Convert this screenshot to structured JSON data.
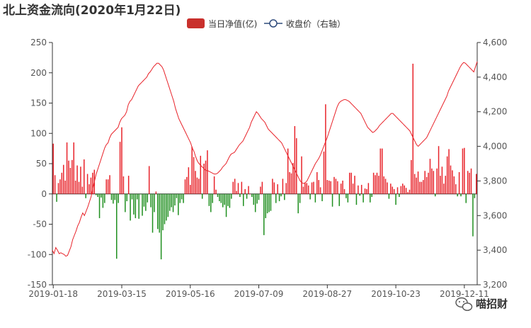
{
  "chart_data": {
    "type": "bar+line",
    "title": "北上资金流向(2020年1月22日)",
    "legend": [
      "当日净值(亿)",
      "收盘价（右轴）"
    ],
    "colors": {
      "positive": "#e8232a",
      "negative": "#1f8f1f",
      "line": "#e8232a"
    },
    "y_left": {
      "min": -150,
      "max": 250,
      "ticks": [
        "250",
        "200",
        "150",
        "100",
        "50",
        "0",
        "-50",
        "-100",
        "-150"
      ]
    },
    "y_right": {
      "min": 3200,
      "max": 4600,
      "ticks": [
        "4,600",
        "4,400",
        "4,200",
        "4,000",
        "3,800",
        "3,600",
        "3,400",
        "3,200"
      ]
    },
    "x_tick_labels": [
      "2019-01-18",
      "2019-03-15",
      "2019-05-16",
      "2019-07-09",
      "2019-08-27",
      "2019-10-23",
      "2019-12-11"
    ],
    "x_tick_index": [
      0,
      40,
      80,
      120,
      160,
      200,
      240
    ],
    "net_inflow": [
      83,
      31,
      -13,
      18,
      24,
      35,
      48,
      22,
      85,
      55,
      43,
      56,
      85,
      22,
      47,
      20,
      45,
      12,
      57,
      -7,
      33,
      16,
      27,
      35,
      40,
      -2,
      -5,
      -40,
      -6,
      -23,
      -15,
      24,
      24,
      31,
      -10,
      -16,
      -10,
      -107,
      -15,
      86,
      110,
      29,
      -30,
      -12,
      30,
      -44,
      -9,
      -34,
      -40,
      -9,
      -41,
      -1,
      -36,
      -21,
      -28,
      -14,
      46,
      -22,
      -64,
      -30,
      4,
      -58,
      -64,
      -108,
      -60,
      -50,
      -44,
      -38,
      -28,
      -22,
      -30,
      -19,
      -7,
      -35,
      -15,
      -9,
      -15,
      24,
      28,
      44,
      15,
      78,
      61,
      38,
      27,
      25,
      63,
      -8,
      50,
      55,
      72,
      -20,
      -30,
      -15,
      29,
      7,
      -5,
      -12,
      -15,
      -22,
      -18,
      -38,
      -20,
      -23,
      -8,
      20,
      25,
      5,
      18,
      -5,
      20,
      -20,
      8,
      -8,
      13,
      0,
      -5,
      -18,
      -30,
      -16,
      -10,
      12,
      20,
      -68,
      -40,
      -32,
      -30,
      -28,
      25,
      19,
      -15,
      16,
      -12,
      -4,
      25,
      -10,
      18,
      75,
      36,
      34,
      51,
      112,
      92,
      -32,
      -15,
      62,
      12,
      18,
      18,
      14,
      -9,
      19,
      20,
      -14,
      36,
      23,
      11,
      -12,
      70,
      148,
      23,
      22,
      21,
      -21,
      28,
      25,
      21,
      -20,
      17,
      22,
      8,
      -7,
      -14,
      35,
      35,
      17,
      30,
      -18,
      14,
      -3,
      15,
      -14,
      9,
      8,
      18,
      -14,
      -5,
      35,
      31,
      35,
      30,
      75,
      75,
      29,
      25,
      19,
      -8,
      17,
      12,
      8,
      -18,
      11,
      -5,
      13,
      17,
      14,
      10,
      3,
      7,
      56,
      215,
      33,
      27,
      37,
      20,
      20,
      23,
      38,
      28,
      35,
      58,
      42,
      38,
      -4,
      42,
      79,
      30,
      45,
      17,
      30,
      62,
      74,
      47,
      39,
      29,
      16,
      -4,
      36,
      -4,
      75,
      76,
      -15,
      38,
      35,
      42,
      -70,
      -7,
      33
    ],
    "close_price": [
      3400,
      3380,
      3415,
      3400,
      3380,
      3385,
      3380,
      3375,
      3365,
      3370,
      3395,
      3420,
      3460,
      3485,
      3510,
      3540,
      3560,
      3590,
      3615,
      3600,
      3625,
      3650,
      3680,
      3710,
      3760,
      3800,
      3840,
      3870,
      3900,
      3930,
      3960,
      3990,
      4010,
      4020,
      4050,
      4070,
      4080,
      4090,
      4100,
      4110,
      4140,
      4160,
      4170,
      4180,
      4200,
      4240,
      4260,
      4270,
      4290,
      4310,
      4330,
      4350,
      4360,
      4370,
      4380,
      4390,
      4400,
      4420,
      4430,
      4445,
      4460,
      4470,
      4480,
      4480,
      4470,
      4460,
      4440,
      4410,
      4380,
      4350,
      4320,
      4290,
      4260,
      4220,
      4190,
      4160,
      4140,
      4120,
      4100,
      4080,
      4060,
      4040,
      4020,
      3990,
      3970,
      3940,
      3915,
      3900,
      3890,
      3880,
      3870,
      3860,
      3860,
      3855,
      3850,
      3845,
      3840,
      3840,
      3845,
      3855,
      3865,
      3880,
      3890,
      3900,
      3920,
      3940,
      3955,
      3960,
      3965,
      3980,
      3995,
      4010,
      4020,
      4030,
      4050,
      4070,
      4090,
      4110,
      4140,
      4160,
      4180,
      4200,
      4190,
      4175,
      4160,
      4150,
      4140,
      4120,
      4100,
      4090,
      4080,
      4070,
      4060,
      4050,
      4040,
      4030,
      4020,
      4000,
      3980,
      3960,
      3940,
      3920,
      3900,
      3880,
      3860,
      3840,
      3820,
      3800,
      3790,
      3785,
      3790,
      3800,
      3820,
      3840,
      3860,
      3880,
      3900,
      3915,
      3930,
      3950,
      3975,
      4000,
      4025,
      4050,
      4080,
      4110,
      4140,
      4170,
      4200,
      4230,
      4250,
      4260,
      4265,
      4270,
      4270,
      4265,
      4260,
      4250,
      4240,
      4230,
      4220,
      4210,
      4200,
      4190,
      4170,
      4150,
      4130,
      4110,
      4100,
      4090,
      4080,
      4085,
      4095,
      4105,
      4120,
      4130,
      4140,
      4150,
      4160,
      4170,
      4180,
      4190,
      4190,
      4180,
      4170,
      4160,
      4150,
      4140,
      4130,
      4120,
      4110,
      4100,
      4090,
      4070,
      4050,
      4030,
      4010,
      4000,
      4010,
      4020,
      4030,
      4040,
      4050,
      4070,
      4090,
      4110,
      4130,
      4150,
      4170,
      4190,
      4210,
      4230,
      4250,
      4270,
      4290,
      4320,
      4340,
      4360,
      4380,
      4400,
      4420,
      4440,
      4460,
      4475,
      4485,
      4480,
      4470,
      4460,
      4450,
      4440,
      4430,
      4460,
      4490
    ]
  },
  "watermark": {
    "text": "喵招财",
    "icon": "wechat-icon"
  }
}
